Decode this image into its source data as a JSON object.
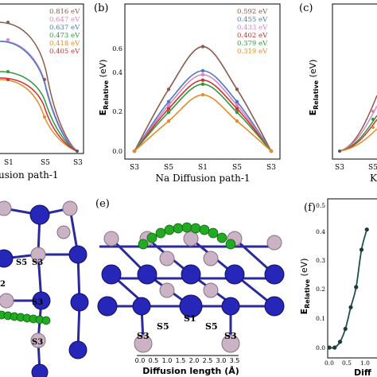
{
  "panels": {
    "a": {
      "xlabel": "usion path-1",
      "ticks": [
        "S1",
        "S5",
        "S3"
      ],
      "legend": [
        {
          "text": "0.816 eV",
          "color": "#8b5a4a"
        },
        {
          "text": "0.647 eV",
          "color": "#d985c0"
        },
        {
          "text": "0.637 eV",
          "color": "#4a78c8"
        },
        {
          "text": "0.473 eV",
          "color": "#2e9a3a"
        },
        {
          "text": "0.418 eV",
          "color": "#e88a2a"
        },
        {
          "text": "0.405 eV",
          "color": "#d32f2f"
        }
      ]
    },
    "b": {
      "label": "(b)",
      "xlabel": "Na Diffusion path-1",
      "ylabel_main": "E",
      "ylabel_sub": "Relative",
      "ylabel_unit": " (eV)",
      "yticks": [
        "0.0",
        "0.2",
        "0.4",
        "0.6"
      ],
      "xticks": [
        "S3",
        "S5",
        "S1",
        "S5",
        "S3"
      ],
      "legend": [
        {
          "text": "0.592 eV",
          "color": "#8b5a4a"
        },
        {
          "text": "0.455 eV",
          "color": "#4a78c8"
        },
        {
          "text": "0.433 eV",
          "color": "#d985c0"
        },
        {
          "text": "0.402 eV",
          "color": "#d32f2f"
        },
        {
          "text": "0.379 eV",
          "color": "#2e9a3a"
        },
        {
          "text": "0.319 eV",
          "color": "#e88a2a"
        }
      ]
    },
    "c": {
      "label": "(c)",
      "ylabel_main": "E",
      "ylabel_sub": "Relative",
      "ylabel_unit": " (eV)",
      "xticks": [
        "S3",
        "S5"
      ],
      "xlabel": "K"
    },
    "d": {
      "site_labels": [
        "S5",
        "S3",
        "S3",
        "2",
        "S3"
      ]
    },
    "e": {
      "label": "(e)",
      "site_labels": [
        "S1",
        "S5",
        "S5",
        "S3",
        "S3"
      ],
      "axis_ticks": [
        "0.0",
        "0.5",
        "1.0",
        "1.5",
        "2.0",
        "2.5",
        "3.0",
        "3.5"
      ],
      "axis_label": "Diffusion length (Å)"
    },
    "f": {
      "label": "(f)",
      "yticks": [
        "0.0",
        "0.1",
        "0.2",
        "0.3",
        "0.4",
        "0.5"
      ],
      "ylabel_main": "E",
      "ylabel_sub": "Relative",
      "ylabel_unit": " (eV)",
      "xticks": [
        "0.0",
        "0.5",
        "1.0"
      ],
      "xlabel": "Diff"
    }
  },
  "chart_data": [
    {
      "panel": "b",
      "type": "line",
      "title": "",
      "xlabel": "Na Diffusion path-1",
      "ylabel": "E_Relative (eV)",
      "categories": [
        "S3",
        "S5",
        "S1",
        "S5",
        "S3"
      ],
      "x": [
        0,
        1,
        2,
        3,
        4
      ],
      "ylim": [
        -0.05,
        0.7
      ],
      "series": [
        {
          "name": "0.592 eV",
          "color": "#8b5a4a",
          "values": [
            0.0,
            0.35,
            0.592,
            0.35,
            0.0
          ]
        },
        {
          "name": "0.455 eV",
          "color": "#4a78c8",
          "values": [
            0.0,
            0.28,
            0.455,
            0.28,
            0.0
          ]
        },
        {
          "name": "0.433 eV",
          "color": "#d985c0",
          "values": [
            0.0,
            0.26,
            0.433,
            0.26,
            0.0
          ]
        },
        {
          "name": "0.402 eV",
          "color": "#d32f2f",
          "values": [
            0.0,
            0.24,
            0.402,
            0.24,
            0.0
          ]
        },
        {
          "name": "0.379 eV",
          "color": "#2e9a3a",
          "values": [
            0.0,
            0.22,
            0.379,
            0.22,
            0.0
          ]
        },
        {
          "name": "0.319 eV",
          "color": "#e88a2a",
          "values": [
            0.0,
            0.17,
            0.319,
            0.17,
            0.0
          ]
        }
      ]
    },
    {
      "panel": "f",
      "type": "line",
      "title": "",
      "xlabel": "Diff",
      "ylabel": "E_Relative (eV)",
      "x": [
        0.0,
        0.15,
        0.3,
        0.45,
        0.6,
        0.75,
        0.9,
        1.05
      ],
      "ylim": [
        0.0,
        0.5
      ],
      "series": [
        {
          "name": "",
          "color": "#1e4f4f",
          "values": [
            0.0,
            0.0,
            0.02,
            0.065,
            0.14,
            0.21,
            0.34,
            0.41
          ]
        }
      ]
    }
  ]
}
